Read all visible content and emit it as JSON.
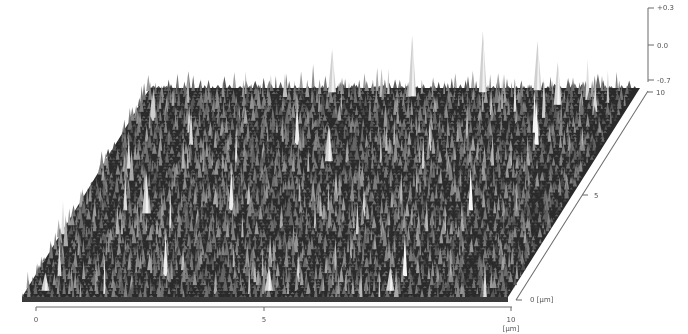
{
  "chart_data": {
    "type": "surface",
    "x_axis": {
      "ticks": [
        "0",
        "5",
        "10"
      ],
      "unit_label": "[µm]"
    },
    "y_axis": {
      "ticks": [
        "0 [µm]",
        "5",
        "10"
      ]
    },
    "z_axis": {
      "ticks": [
        "-0.7",
        "0.0",
        "+0.3"
      ],
      "range": [
        -0.7,
        0.3
      ]
    },
    "grid": false,
    "legend": "none",
    "colors": {
      "surface_dark": "#262626",
      "surface_light": "#d8d8d8",
      "axis": "#6a6a6a",
      "background": "#ffffff"
    },
    "notable_peaks": [
      {
        "x": 5.5,
        "y": 9.6,
        "z": 0.3
      },
      {
        "x": 6.9,
        "y": 9.8,
        "z": 0.3
      },
      {
        "x": 8.0,
        "y": 9.9,
        "z": 0.1
      },
      {
        "x": 8.6,
        "y": 9.2,
        "z": 0.0
      },
      {
        "x": 1.5,
        "y": 4.0,
        "z": 0.0
      },
      {
        "x": 4.6,
        "y": 6.5,
        "z": -0.1
      },
      {
        "x": 3.8,
        "y": 9.8,
        "z": 0.0
      },
      {
        "x": 0.4,
        "y": 0.3,
        "z": -0.4
      },
      {
        "x": 5.0,
        "y": 0.3,
        "z": -0.3
      },
      {
        "x": 7.5,
        "y": 0.3,
        "z": -0.3
      }
    ]
  }
}
